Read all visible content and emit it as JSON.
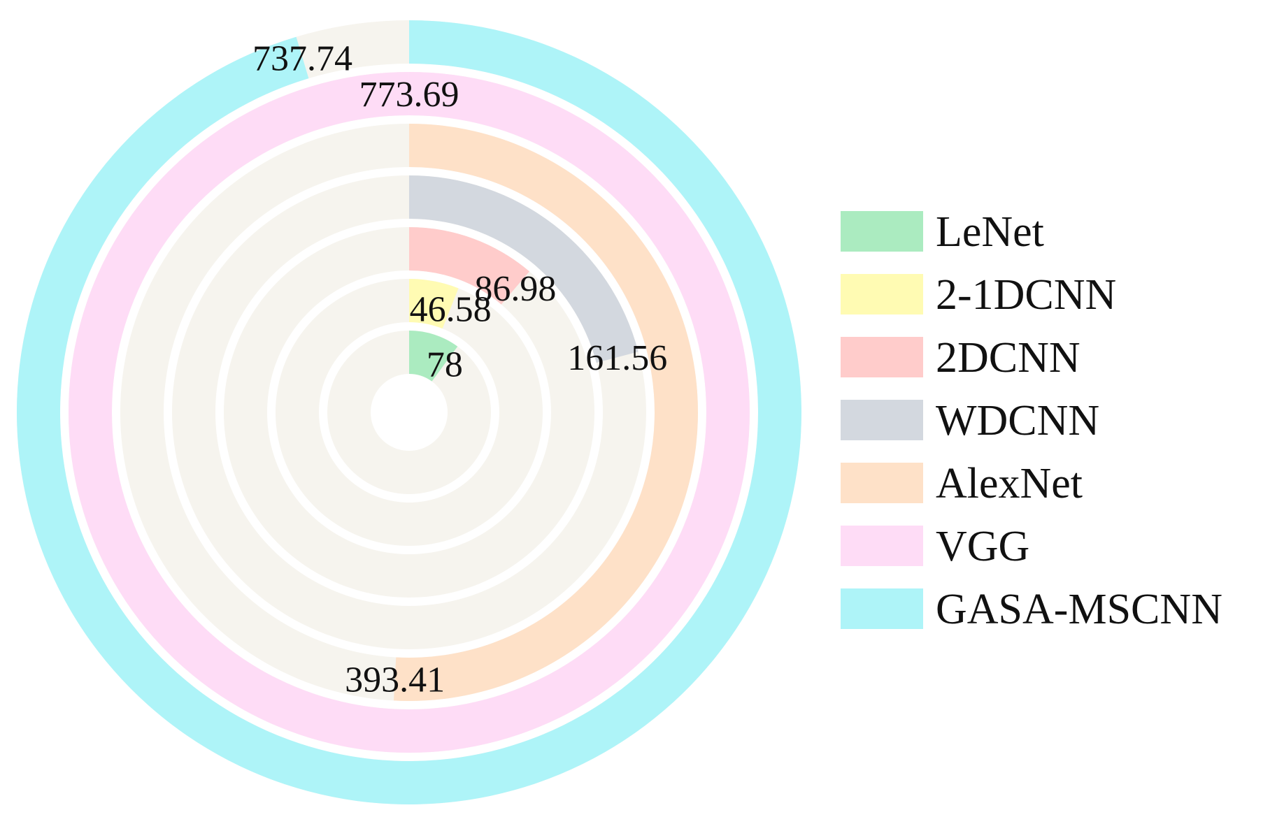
{
  "chart_data": {
    "type": "radial-bar",
    "title": "",
    "direction": "clockwise from top",
    "track_color": "#f6f4ee",
    "full_scale_note": "rings drawn relative to the largest value",
    "series": [
      {
        "name": "LeNet",
        "value": 78,
        "label": "78",
        "color": "#abebc0"
      },
      {
        "name": "2-1DCNN",
        "value": 46.58,
        "label": "46.58",
        "color": "#fffbb3"
      },
      {
        "name": "2DCNN",
        "value": 86.98,
        "label": "86.98",
        "color": "#ffcccb"
      },
      {
        "name": "WDCNN",
        "value": 161.56,
        "label": "161.56",
        "color": "#d3d8df"
      },
      {
        "name": "AlexNet",
        "value": 393.41,
        "label": "393.41",
        "color": "#fee1c8"
      },
      {
        "name": "VGG",
        "value": 773.69,
        "label": "773.69",
        "color": "#fedcf6"
      },
      {
        "name": "GASA-MSCNN",
        "value": 737.74,
        "label": "737.74",
        "color": "#aef4f8"
      }
    ],
    "legend": {
      "position": "right"
    },
    "grid": false
  }
}
